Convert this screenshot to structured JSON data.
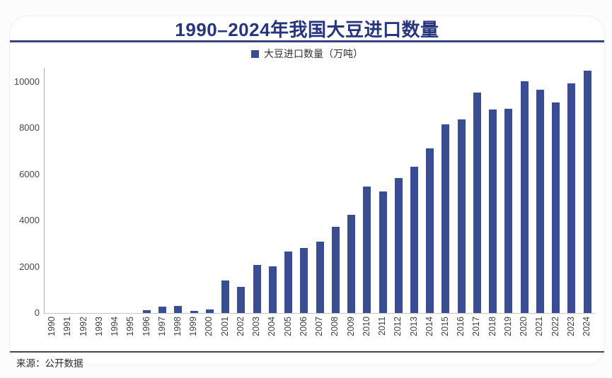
{
  "chart": {
    "title": "1990–2024年我国大豆进口数量",
    "legend_label": "大豆进口数量（万吨）",
    "source": "来源：公开数据",
    "title_color": "#27357c",
    "bar_color": "#3a4d92"
  },
  "chart_data": {
    "type": "bar",
    "title": "1990–2024年我国大豆进口数量",
    "legend": [
      "大豆进口数量（万吨）"
    ],
    "legend_position": "top-center",
    "grid": false,
    "xlabel": "",
    "ylabel": "",
    "unit": "万吨",
    "ylim": [
      0,
      10000
    ],
    "yticks": [
      0,
      2000,
      4000,
      6000,
      8000,
      10000
    ],
    "categories": [
      "1990",
      "1991",
      "1992",
      "1993",
      "1994",
      "1995",
      "1996",
      "1997",
      "1998",
      "1999",
      "2000",
      "2001",
      "2002",
      "2003",
      "2004",
      "2005",
      "2006",
      "2007",
      "2008",
      "2009",
      "2010",
      "2011",
      "2012",
      "2013",
      "2014",
      "2015",
      "2016",
      "2017",
      "2018",
      "2019",
      "2020",
      "2021",
      "2022",
      "2023",
      "2024"
    ],
    "values": [
      0,
      0,
      0,
      0,
      0,
      0,
      111,
      279,
      320,
      80,
      150,
      1394,
      1132,
      2074,
      2023,
      2659,
      2824,
      3082,
      3744,
      4255,
      5480,
      5264,
      5838,
      6340,
      7140,
      8169,
      8391,
      9553,
      8803,
      8851,
      10033,
      9652,
      9108,
      9941,
      10503
    ],
    "bar_color": "#3a4d92",
    "source_note": "来源：公开数据"
  }
}
